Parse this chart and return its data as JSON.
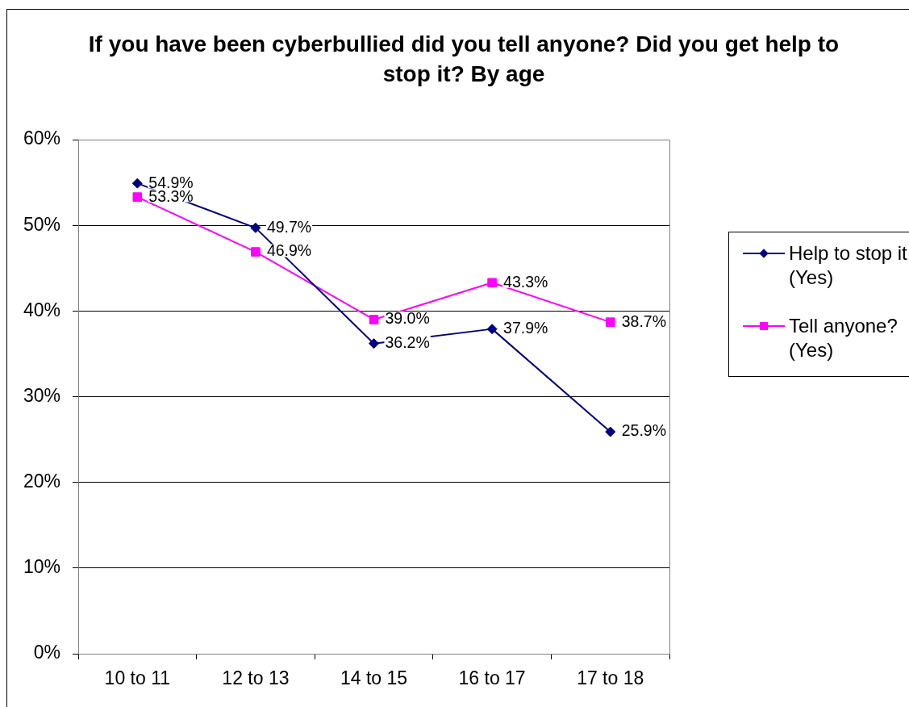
{
  "chart_data": {
    "type": "line",
    "title": "If you have been cyberbullied did you tell anyone? Did you get help to stop it? By age",
    "categories": [
      "10 to 11",
      "12 to 13",
      "14 to 15",
      "16 to 17",
      "17 to 18"
    ],
    "series": [
      {
        "name": "Help to stop it (Yes)",
        "color": "#000080",
        "marker": "diamond",
        "values": [
          54.9,
          49.7,
          36.2,
          37.9,
          25.9
        ],
        "value_labels": [
          "54.9%",
          "49.7%",
          "36.2%",
          "37.9%",
          "25.9%"
        ]
      },
      {
        "name": "Tell anyone? (Yes)",
        "color": "#ff00ff",
        "marker": "square",
        "values": [
          53.3,
          46.9,
          39.0,
          43.3,
          38.7
        ],
        "value_labels": [
          "53.3%",
          "46.9%",
          "39.0%",
          "43.3%",
          "38.7%"
        ]
      }
    ],
    "ylim": [
      0,
      60
    ],
    "yticks": [
      {
        "value": 0,
        "label": "0%"
      },
      {
        "value": 10,
        "label": "10%"
      },
      {
        "value": 20,
        "label": "20%"
      },
      {
        "value": 30,
        "label": "30%"
      },
      {
        "value": 40,
        "label": "40%"
      },
      {
        "value": 50,
        "label": "50%"
      },
      {
        "value": 60,
        "label": "60%"
      }
    ],
    "grid": "y",
    "legend": "right",
    "line_style": "solid"
  }
}
